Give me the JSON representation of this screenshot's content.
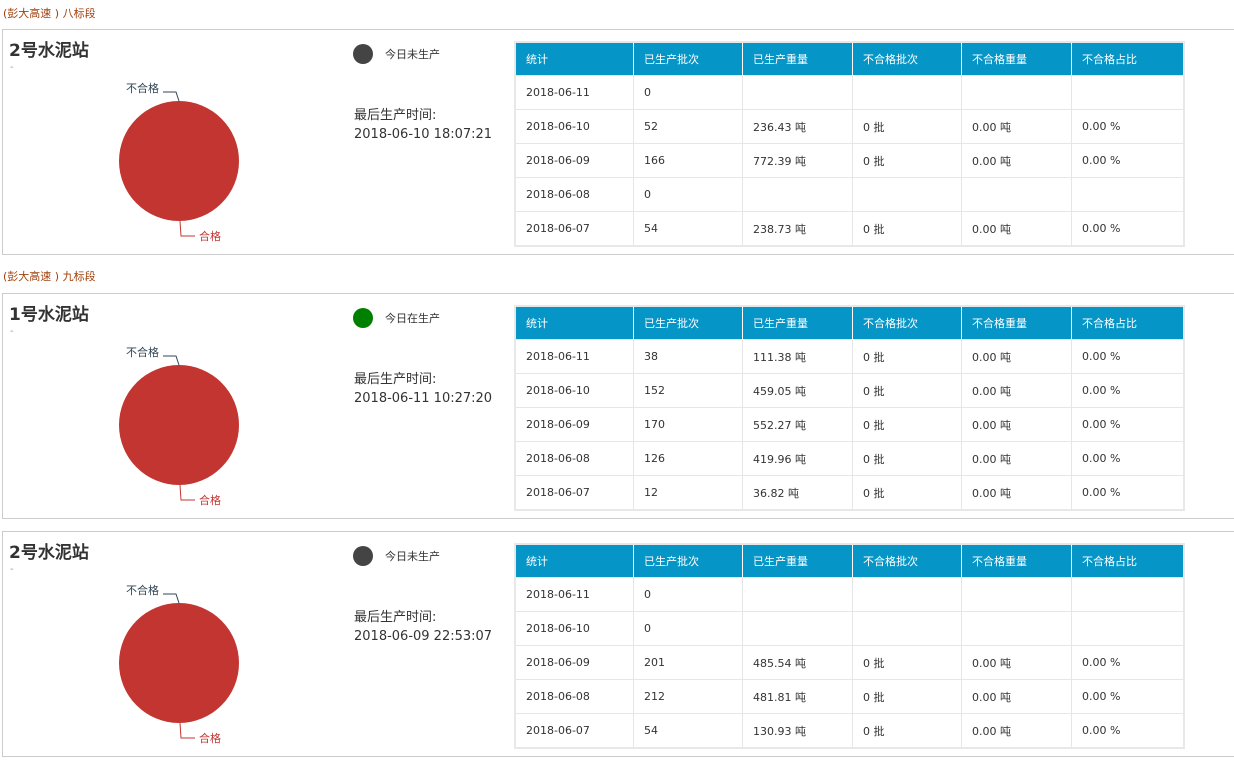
{
  "colors": {
    "header": "#0596c7",
    "pass": "#c23531",
    "idle": "#444444",
    "active": "#008000"
  },
  "columns": [
    "统计",
    "已生产批次",
    "已生产重量",
    "不合格批次",
    "不合格重量",
    "不合格占比"
  ],
  "last_label": "最后生产时间:",
  "pie_labels": {
    "fail": "不合格",
    "pass": "合格"
  },
  "panels": [
    {
      "section": "(彭大高速 ) 八标段",
      "title": "2号水泥站",
      "subtitle": "-",
      "status": "今日未生产",
      "status_color": "#444444",
      "last_time": "2018-06-10 18:07:21",
      "pie": {
        "pass": 100,
        "fail": 0
      },
      "rows": [
        [
          "2018-06-11",
          "0",
          "",
          "",
          "",
          ""
        ],
        [
          "2018-06-10",
          "52",
          "236.43 吨",
          "0 批",
          "0.00 吨",
          "0.00 %"
        ],
        [
          "2018-06-09",
          "166",
          "772.39 吨",
          "0 批",
          "0.00 吨",
          "0.00 %"
        ],
        [
          "2018-06-08",
          "0",
          "",
          "",
          "",
          ""
        ],
        [
          "2018-06-07",
          "54",
          "238.73 吨",
          "0 批",
          "0.00 吨",
          "0.00 %"
        ]
      ]
    },
    {
      "section": "(彭大高速 ) 九标段",
      "title": "1号水泥站",
      "subtitle": "-",
      "status": "今日在生产",
      "status_color": "#008000",
      "last_time": "2018-06-11 10:27:20",
      "pie": {
        "pass": 100,
        "fail": 0
      },
      "rows": [
        [
          "2018-06-11",
          "38",
          "111.38 吨",
          "0 批",
          "0.00 吨",
          "0.00 %"
        ],
        [
          "2018-06-10",
          "152",
          "459.05 吨",
          "0 批",
          "0.00 吨",
          "0.00 %"
        ],
        [
          "2018-06-09",
          "170",
          "552.27 吨",
          "0 批",
          "0.00 吨",
          "0.00 %"
        ],
        [
          "2018-06-08",
          "126",
          "419.96 吨",
          "0 批",
          "0.00 吨",
          "0.00 %"
        ],
        [
          "2018-06-07",
          "12",
          "36.82 吨",
          "0 批",
          "0.00 吨",
          "0.00 %"
        ]
      ]
    },
    {
      "section": "",
      "title": "2号水泥站",
      "subtitle": "-",
      "status": "今日未生产",
      "status_color": "#444444",
      "last_time": "2018-06-09 22:53:07",
      "pie": {
        "pass": 100,
        "fail": 0
      },
      "rows": [
        [
          "2018-06-11",
          "0",
          "",
          "",
          "",
          ""
        ],
        [
          "2018-06-10",
          "0",
          "",
          "",
          "",
          ""
        ],
        [
          "2018-06-09",
          "201",
          "485.54 吨",
          "0 批",
          "0.00 吨",
          "0.00 %"
        ],
        [
          "2018-06-08",
          "212",
          "481.81 吨",
          "0 批",
          "0.00 吨",
          "0.00 %"
        ],
        [
          "2018-06-07",
          "54",
          "130.93 吨",
          "0 批",
          "0.00 吨",
          "0.00 %"
        ]
      ]
    }
  ]
}
